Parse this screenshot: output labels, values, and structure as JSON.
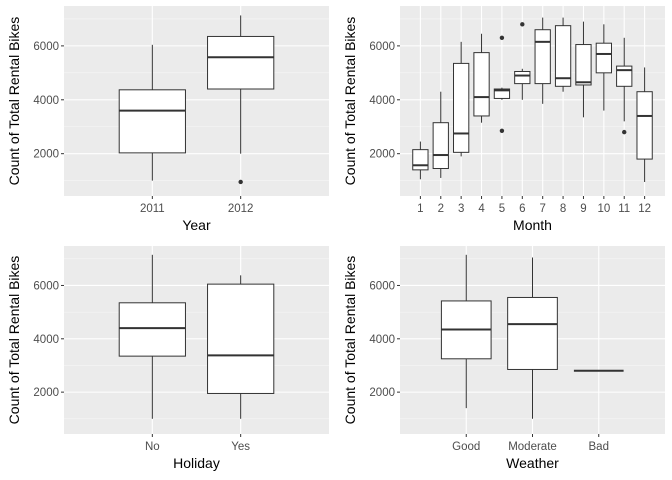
{
  "chart_data": [
    {
      "type": "box",
      "id": "year",
      "xlabel": "Year",
      "ylabel": "Count of Total Rental Bikes",
      "ylim": [
        430,
        7480
      ],
      "yticks": [
        2000,
        4000,
        6000
      ],
      "grid": true,
      "categories": [
        "2011",
        "2012"
      ],
      "boxes": [
        {
          "low": 1000,
          "q1": 2030,
          "median": 3600,
          "q3": 4370,
          "high": 6040,
          "outliers": []
        },
        {
          "low": 2000,
          "q1": 4400,
          "median": 5580,
          "q3": 6350,
          "high": 7130,
          "outliers": [
            950
          ]
        }
      ]
    },
    {
      "type": "box",
      "id": "month",
      "xlabel": "Month",
      "ylabel": "Count of Total Rental Bikes",
      "ylim": [
        430,
        7480
      ],
      "yticks": [
        2000,
        4000,
        6000
      ],
      "grid": true,
      "categories": [
        "1",
        "2",
        "3",
        "4",
        "5",
        "6",
        "7",
        "8",
        "9",
        "10",
        "11",
        "12"
      ],
      "boxes": [
        {
          "low": 1050,
          "q1": 1400,
          "median": 1570,
          "q3": 2150,
          "high": 2450,
          "outliers": []
        },
        {
          "low": 1100,
          "q1": 1450,
          "median": 1950,
          "q3": 3150,
          "high": 4300,
          "outliers": []
        },
        {
          "low": 1900,
          "q1": 2050,
          "median": 2750,
          "q3": 5350,
          "high": 6150,
          "outliers": []
        },
        {
          "low": 3150,
          "q1": 3400,
          "median": 4100,
          "q3": 5750,
          "high": 6450,
          "outliers": []
        },
        {
          "low": 4000,
          "q1": 4050,
          "median": 4350,
          "q3": 4400,
          "high": 4450,
          "outliers": [
            6300,
            2850
          ]
        },
        {
          "low": 4000,
          "q1": 4600,
          "median": 4900,
          "q3": 5050,
          "high": 5150,
          "outliers": [
            6800
          ]
        },
        {
          "low": 3850,
          "q1": 4600,
          "median": 6150,
          "q3": 6600,
          "high": 7050,
          "outliers": []
        },
        {
          "low": 4300,
          "q1": 4500,
          "median": 4800,
          "q3": 6750,
          "high": 7050,
          "outliers": []
        },
        {
          "low": 3350,
          "q1": 4550,
          "median": 4650,
          "q3": 6050,
          "high": 6900,
          "outliers": []
        },
        {
          "low": 3600,
          "q1": 5000,
          "median": 5700,
          "q3": 6100,
          "high": 6800,
          "outliers": []
        },
        {
          "low": 3200,
          "q1": 4500,
          "median": 5100,
          "q3": 5250,
          "high": 6300,
          "outliers": [
            2800
          ]
        },
        {
          "low": 950,
          "q1": 1800,
          "median": 3400,
          "q3": 4300,
          "high": 5200,
          "outliers": []
        }
      ]
    },
    {
      "type": "box",
      "id": "holiday",
      "xlabel": "Holiday",
      "ylabel": "Count of Total Rental Bikes",
      "ylim": [
        430,
        7480
      ],
      "yticks": [
        2000,
        4000,
        6000
      ],
      "grid": true,
      "categories": [
        "No",
        "Yes"
      ],
      "boxes": [
        {
          "low": 1000,
          "q1": 3350,
          "median": 4400,
          "q3": 5350,
          "high": 7150,
          "outliers": []
        },
        {
          "low": 1000,
          "q1": 1950,
          "median": 3380,
          "q3": 6050,
          "high": 6380,
          "outliers": []
        }
      ]
    },
    {
      "type": "box",
      "id": "weather",
      "xlabel": "Weather",
      "ylabel": "Count of Total Rental Bikes",
      "ylim": [
        430,
        7480
      ],
      "yticks": [
        2000,
        4000,
        6000
      ],
      "grid": true,
      "categories": [
        "Good",
        "Moderate",
        "Bad"
      ],
      "boxes": [
        {
          "low": 1400,
          "q1": 3250,
          "median": 4350,
          "q3": 5420,
          "high": 7150,
          "outliers": []
        },
        {
          "low": 1000,
          "q1": 2850,
          "median": 4550,
          "q3": 5550,
          "high": 7050,
          "outliers": []
        },
        {
          "low": 2800,
          "q1": 2800,
          "median": 2800,
          "q3": 2800,
          "high": 2800,
          "outliers": []
        }
      ]
    }
  ]
}
